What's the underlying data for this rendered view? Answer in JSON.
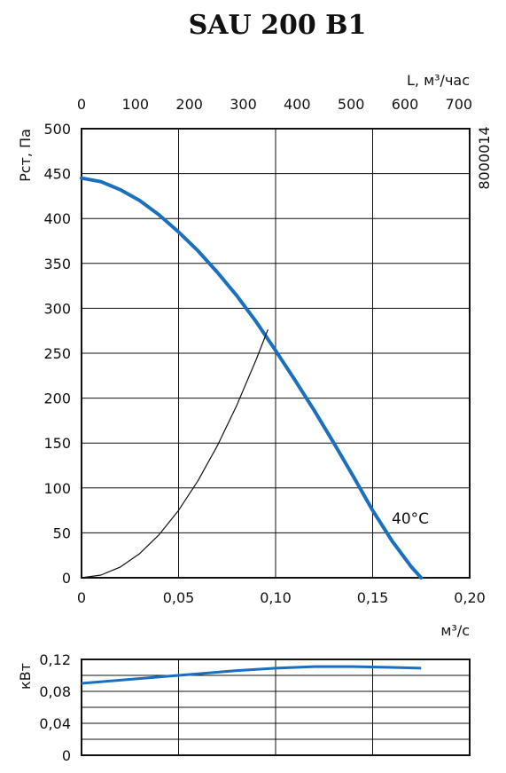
{
  "title": "SAU 200 B1",
  "code": "8000014",
  "chart_data": [
    {
      "type": "line",
      "name": "pressure",
      "xlabel": "м³/с",
      "ylabel": "Рст, Па",
      "x2label": "L, м³/час",
      "xlim": [
        0,
        0.2
      ],
      "ylim": [
        0,
        500
      ],
      "x2lim": [
        0,
        720
      ],
      "x_ticks": [
        "0",
        "0,05",
        "0,10",
        "0,15",
        "0,20"
      ],
      "y_ticks": [
        "0",
        "50",
        "100",
        "150",
        "200",
        "250",
        "300",
        "350",
        "400",
        "450",
        "500"
      ],
      "x2_ticks": [
        "0",
        "100",
        "200",
        "300",
        "400",
        "500",
        "600",
        "700"
      ],
      "x2_tick_values": [
        0,
        100,
        200,
        300,
        400,
        500,
        600,
        700
      ],
      "grid": true,
      "series": [
        {
          "name": "40°C",
          "color": "#1a6fbf",
          "x": [
            0.0,
            0.01,
            0.02,
            0.03,
            0.04,
            0.05,
            0.06,
            0.07,
            0.08,
            0.09,
            0.1,
            0.11,
            0.12,
            0.13,
            0.14,
            0.15,
            0.16,
            0.17,
            0.175
          ],
          "y": [
            445,
            441,
            432,
            420,
            404,
            385,
            364,
            340,
            314,
            285,
            253,
            220,
            186,
            150,
            113,
            75,
            41,
            12,
            0
          ]
        },
        {
          "name": "",
          "color": "#111111",
          "x": [
            0.0,
            0.01,
            0.02,
            0.03,
            0.04,
            0.05,
            0.06,
            0.07,
            0.08,
            0.09,
            0.096
          ],
          "y": [
            0,
            3,
            12,
            27,
            48,
            75,
            108,
            147,
            192,
            243,
            276
          ]
        }
      ]
    },
    {
      "type": "line",
      "name": "power",
      "ylabel": "кВт",
      "xlim": [
        0,
        0.2
      ],
      "ylim": [
        0,
        0.12
      ],
      "y_ticks": [
        "0",
        "0,04",
        "0,08",
        "0,12"
      ],
      "grid": true,
      "series": [
        {
          "name": "",
          "color": "#1a6fbf",
          "x": [
            0.0,
            0.02,
            0.04,
            0.06,
            0.08,
            0.1,
            0.12,
            0.14,
            0.16,
            0.175
          ],
          "y": [
            0.09,
            0.094,
            0.098,
            0.102,
            0.106,
            0.109,
            0.111,
            0.111,
            0.11,
            0.109
          ]
        }
      ]
    }
  ]
}
